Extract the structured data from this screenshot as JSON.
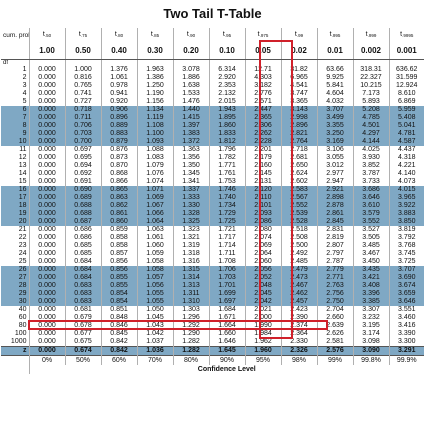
{
  "title": "Two Tail T-Table",
  "header_t": {
    "label": "cum. prob",
    "t_levels": [
      ".50",
      ".75",
      ".80",
      ".85",
      ".90",
      ".95",
      ".975",
      ".99",
      ".995",
      ".999",
      ".9995"
    ],
    "t_symbol": "t"
  },
  "header_alpha": {
    "values": [
      "1.00",
      "0.50",
      "0.40",
      "0.30",
      "0.20",
      "0.10",
      "0.05",
      "0.02",
      "0.01",
      "0.002",
      "0.001"
    ]
  },
  "df_label": "df",
  "rows": [
    [
      "1",
      "0.000",
      "1.000",
      "1.376",
      "1.963",
      "3.078",
      "6.314",
      "12.71",
      "31.82",
      "63.66",
      "318.31",
      "636.62"
    ],
    [
      "2",
      "0.000",
      "0.816",
      "1.061",
      "1.386",
      "1.886",
      "2.920",
      "4.303",
      "6.965",
      "9.925",
      "22.327",
      "31.599"
    ],
    [
      "3",
      "0.000",
      "0.765",
      "0.978",
      "1.250",
      "1.638",
      "2.353",
      "3.182",
      "4.541",
      "5.841",
      "10.215",
      "12.924"
    ],
    [
      "4",
      "0.000",
      "0.741",
      "0.941",
      "1.190",
      "1.533",
      "2.132",
      "2.776",
      "3.747",
      "4.604",
      "7.173",
      "8.610"
    ],
    [
      "5",
      "0.000",
      "0.727",
      "0.920",
      "1.156",
      "1.476",
      "2.015",
      "2.571",
      "3.365",
      "4.032",
      "5.893",
      "6.869"
    ],
    [
      "6",
      "0.000",
      "0.718",
      "0.906",
      "1.134",
      "1.440",
      "1.943",
      "2.447",
      "3.143",
      "3.707",
      "5.208",
      "5.959"
    ],
    [
      "7",
      "0.000",
      "0.711",
      "0.896",
      "1.119",
      "1.415",
      "1.895",
      "2.365",
      "2.998",
      "3.499",
      "4.785",
      "5.408"
    ],
    [
      "8",
      "0.000",
      "0.706",
      "0.889",
      "1.108",
      "1.397",
      "1.860",
      "2.306",
      "2.896",
      "3.355",
      "4.501",
      "5.041"
    ],
    [
      "9",
      "0.000",
      "0.703",
      "0.883",
      "1.100",
      "1.383",
      "1.833",
      "2.262",
      "2.821",
      "3.250",
      "4.297",
      "4.781"
    ],
    [
      "10",
      "0.000",
      "0.700",
      "0.879",
      "1.093",
      "1.372",
      "1.812",
      "2.228",
      "2.764",
      "3.169",
      "4.144",
      "4.587"
    ],
    [
      "11",
      "0.000",
      "0.697",
      "0.876",
      "1.088",
      "1.363",
      "1.796",
      "2.201",
      "2.718",
      "3.106",
      "4.025",
      "4.437"
    ],
    [
      "12",
      "0.000",
      "0.695",
      "0.873",
      "1.083",
      "1.356",
      "1.782",
      "2.179",
      "2.681",
      "3.055",
      "3.930",
      "4.318"
    ],
    [
      "13",
      "0.000",
      "0.694",
      "0.870",
      "1.079",
      "1.350",
      "1.771",
      "2.160",
      "2.650",
      "3.012",
      "3.852",
      "4.221"
    ],
    [
      "14",
      "0.000",
      "0.692",
      "0.868",
      "1.076",
      "1.345",
      "1.761",
      "2.145",
      "2.624",
      "2.977",
      "3.787",
      "4.140"
    ],
    [
      "15",
      "0.000",
      "0.691",
      "0.866",
      "1.074",
      "1.341",
      "1.753",
      "2.131",
      "2.602",
      "2.947",
      "3.733",
      "4.073"
    ],
    [
      "16",
      "0.000",
      "0.690",
      "0.865",
      "1.071",
      "1.337",
      "1.746",
      "2.120",
      "2.583",
      "2.921",
      "3.686",
      "4.015"
    ],
    [
      "17",
      "0.000",
      "0.689",
      "0.863",
      "1.069",
      "1.333",
      "1.740",
      "2.110",
      "2.567",
      "2.898",
      "3.646",
      "3.965"
    ],
    [
      "18",
      "0.000",
      "0.688",
      "0.862",
      "1.067",
      "1.330",
      "1.734",
      "2.101",
      "2.552",
      "2.878",
      "3.610",
      "3.922"
    ],
    [
      "19",
      "0.000",
      "0.688",
      "0.861",
      "1.066",
      "1.328",
      "1.729",
      "2.093",
      "2.539",
      "2.861",
      "3.579",
      "3.883"
    ],
    [
      "20",
      "0.000",
      "0.687",
      "0.860",
      "1.064",
      "1.325",
      "1.725",
      "2.086",
      "2.528",
      "2.845",
      "3.552",
      "3.850"
    ],
    [
      "21",
      "0.000",
      "0.686",
      "0.859",
      "1.063",
      "1.323",
      "1.721",
      "2.080",
      "2.518",
      "2.831",
      "3.527",
      "3.819"
    ],
    [
      "22",
      "0.000",
      "0.686",
      "0.858",
      "1.061",
      "1.321",
      "1.717",
      "2.074",
      "2.508",
      "2.819",
      "3.505",
      "3.792"
    ],
    [
      "23",
      "0.000",
      "0.685",
      "0.858",
      "1.060",
      "1.319",
      "1.714",
      "2.069",
      "2.500",
      "2.807",
      "3.485",
      "3.768"
    ],
    [
      "24",
      "0.000",
      "0.685",
      "0.857",
      "1.059",
      "1.318",
      "1.711",
      "2.064",
      "2.492",
      "2.797",
      "3.467",
      "3.745"
    ],
    [
      "25",
      "0.000",
      "0.684",
      "0.856",
      "1.058",
      "1.316",
      "1.708",
      "2.060",
      "2.485",
      "2.787",
      "3.450",
      "3.725"
    ],
    [
      "26",
      "0.000",
      "0.684",
      "0.856",
      "1.058",
      "1.315",
      "1.706",
      "2.056",
      "2.479",
      "2.779",
      "3.435",
      "3.707"
    ],
    [
      "27",
      "0.000",
      "0.684",
      "0.855",
      "1.057",
      "1.314",
      "1.703",
      "2.052",
      "2.473",
      "2.771",
      "3.421",
      "3.690"
    ],
    [
      "28",
      "0.000",
      "0.683",
      "0.855",
      "1.056",
      "1.313",
      "1.701",
      "2.048",
      "2.467",
      "2.763",
      "3.408",
      "3.674"
    ],
    [
      "29",
      "0.000",
      "0.683",
      "0.854",
      "1.055",
      "1.311",
      "1.699",
      "2.045",
      "2.462",
      "2.756",
      "3.396",
      "3.659"
    ],
    [
      "30",
      "0.000",
      "0.683",
      "0.854",
      "1.055",
      "1.310",
      "1.697",
      "2.042",
      "2.457",
      "2.750",
      "3.385",
      "3.646"
    ],
    [
      "40",
      "0.000",
      "0.681",
      "0.851",
      "1.050",
      "1.303",
      "1.684",
      "2.021",
      "2.423",
      "2.704",
      "3.307",
      "3.551"
    ],
    [
      "60",
      "0.000",
      "0.679",
      "0.848",
      "1.045",
      "1.296",
      "1.671",
      "2.000",
      "2.390",
      "2.660",
      "3.232",
      "3.460"
    ],
    [
      "80",
      "0.000",
      "0.678",
      "0.846",
      "1.043",
      "1.292",
      "1.664",
      "1.990",
      "2.374",
      "2.639",
      "3.195",
      "3.416"
    ],
    [
      "100",
      "0.000",
      "0.677",
      "0.845",
      "1.042",
      "1.290",
      "1.660",
      "1.984",
      "2.364",
      "2.626",
      "3.174",
      "3.390"
    ],
    [
      "1000",
      "0.000",
      "0.675",
      "0.842",
      "1.037",
      "1.282",
      "1.646",
      "1.962",
      "2.330",
      "2.581",
      "3.098",
      "3.300"
    ]
  ],
  "z_row": [
    "z",
    "0.000",
    "0.674",
    "0.842",
    "1.036",
    "1.282",
    "1.645",
    "1.960",
    "2.326",
    "2.576",
    "3.090",
    "3.291"
  ],
  "confidence_row": [
    "",
    "0%",
    "50%",
    "60%",
    "70%",
    "80%",
    "90%",
    "95%",
    "98%",
    "99%",
    "99.8%",
    "99.9%"
  ],
  "confidence_label": "Confidence Level",
  "shaded_df": [
    "6",
    "7",
    "8",
    "9",
    "10",
    "16",
    "17",
    "18",
    "19",
    "20",
    "26",
    "27",
    "28",
    "29",
    "30"
  ],
  "highlight": {
    "column_alpha": "0.05",
    "row_df": "29",
    "color": "#d0202a"
  },
  "colors": {
    "band": "#7fa8c4",
    "highlight": "#d0202a"
  }
}
